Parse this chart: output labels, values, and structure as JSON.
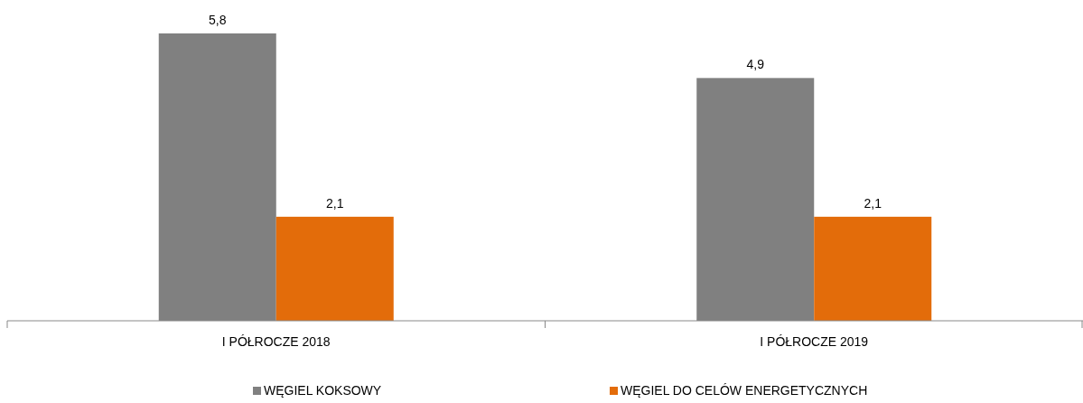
{
  "chart_data": {
    "type": "bar",
    "categories": [
      "I PÓŁROCZE 2018",
      "I PÓŁROCZE 2019"
    ],
    "series": [
      {
        "name": "WĘGIEL KOKSOWY",
        "color": "#808080",
        "values": [
          5.8,
          4.9
        ],
        "value_labels": [
          "5,8",
          "4,9"
        ]
      },
      {
        "name": "WĘGIEL DO CELÓW ENERGETYCZNYCH",
        "color": "#e36c0a",
        "values": [
          2.1,
          2.1
        ],
        "value_labels": [
          "2,1",
          "2,1"
        ]
      }
    ],
    "legend": "bottom"
  }
}
